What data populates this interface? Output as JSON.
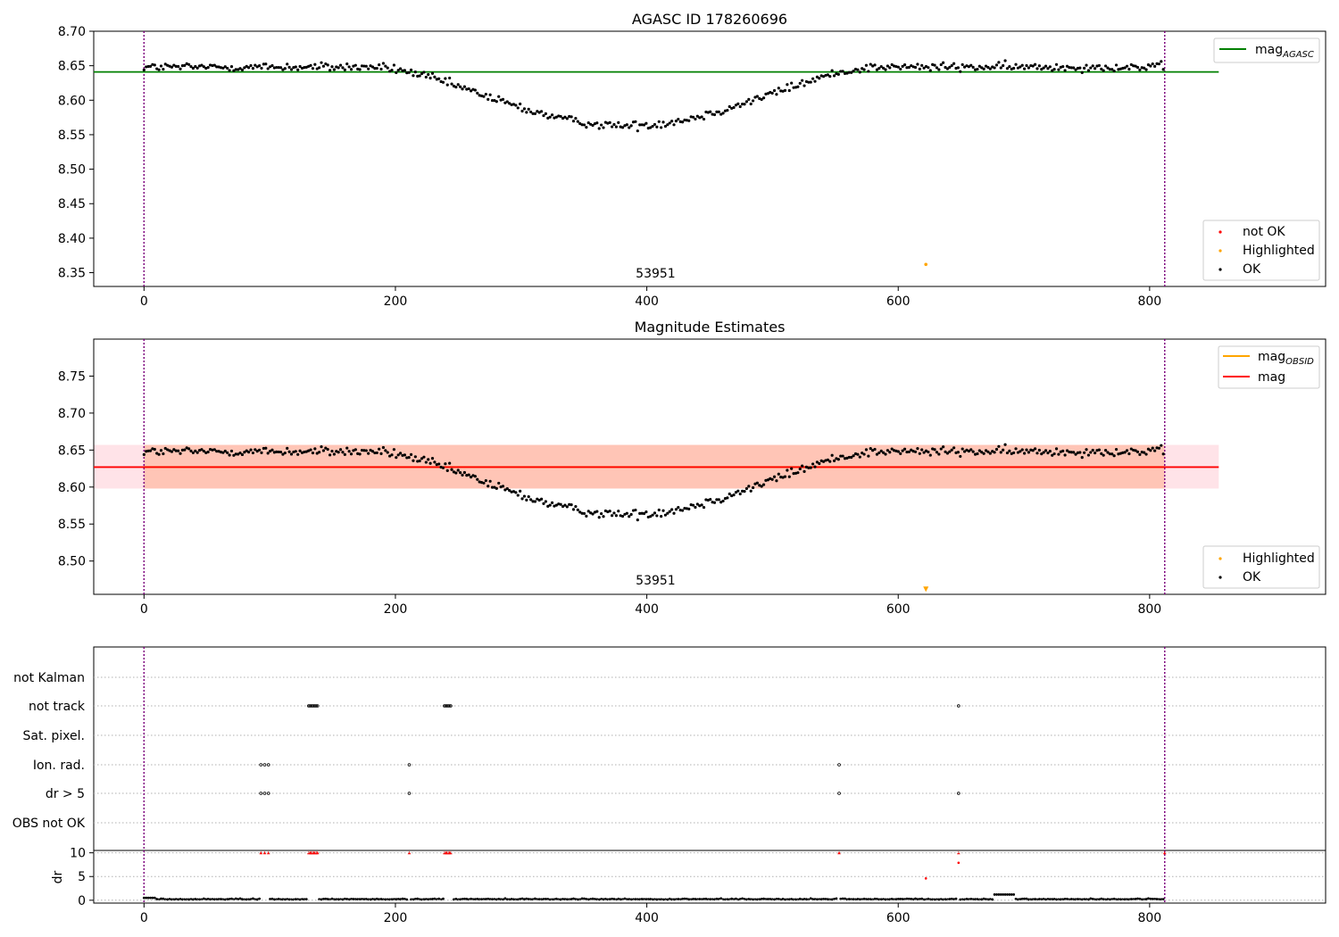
{
  "chart_data": [
    {
      "type": "scatter",
      "title": "AGASC ID 178260696",
      "xlim": [
        -40,
        940
      ],
      "ylim": [
        8.33,
        8.7
      ],
      "xticks": [
        0,
        200,
        400,
        600,
        800
      ],
      "yticks": [
        "8.35",
        "8.40",
        "8.45",
        "8.50",
        "8.55",
        "8.60",
        "8.65",
        "8.70"
      ],
      "grid": false,
      "obs_boundaries": [
        0,
        812
      ],
      "obs_label": {
        "text": "53951",
        "x": 407,
        "y": 8.343
      },
      "reference_line": {
        "name": "mag",
        "name_sub": "AGASC",
        "value": 8.641,
        "x_range": [
          -40,
          855
        ],
        "color": "#008000"
      },
      "highlighted_points": [
        {
          "x": 622,
          "y": 8.362
        }
      ],
      "series_style": {
        "not_ok_color": "#ff0000",
        "highlighted_color": "#ffa500",
        "ok_color": "#000000"
      },
      "curve": {
        "x_max": 812,
        "baseline": 8.648,
        "dip_center": 383,
        "dip_min": 8.563,
        "dip_halfwidth": 200,
        "noise": 0.006
      },
      "legends": {
        "line": {
          "position": "upper right",
          "entries": [
            "mag_AGASC"
          ]
        },
        "markers": {
          "position": "lower right",
          "entries": [
            "not OK",
            "Highlighted",
            "OK"
          ]
        }
      }
    },
    {
      "type": "scatter",
      "title": "Magnitude Estimates",
      "xlim": [
        -40,
        940
      ],
      "ylim": [
        8.455,
        8.8
      ],
      "xticks": [
        0,
        200,
        400,
        600,
        800
      ],
      "yticks": [
        "8.50",
        "8.55",
        "8.60",
        "8.65",
        "8.70",
        "8.75"
      ],
      "grid": false,
      "obs_boundaries": [
        0,
        812
      ],
      "obs_label": {
        "text": "53951",
        "x": 407,
        "y": 8.468
      },
      "mag_line": {
        "name": "mag",
        "value": 8.627,
        "color": "#ff0000",
        "band_low": 8.598,
        "band_high": 8.657,
        "x_range": [
          -40,
          855
        ],
        "band_color": "#ffc0cb"
      },
      "mag_obsid_line": {
        "name": "mag",
        "name_sub": "OBSID",
        "value": 8.627,
        "color": "#ffa500",
        "band_low": 8.598,
        "band_high": 8.657,
        "x_range": [
          0,
          812
        ],
        "band_color": "#ffa07a"
      },
      "highlighted_points": [
        {
          "x": 622,
          "y": 8.462
        }
      ],
      "legends": {
        "line": {
          "position": "upper right",
          "entries": [
            "mag_OBSID",
            "mag"
          ]
        },
        "markers": {
          "position": "lower right",
          "entries": [
            "Highlighted",
            "OK"
          ]
        }
      }
    },
    {
      "type": "scatter",
      "title": "",
      "xlim": [
        -40,
        940
      ],
      "categories": [
        "not Kalman",
        "not track",
        "Sat. pixel.",
        "Ion. rad.",
        "dr > 5",
        "OBS not OK"
      ],
      "flags": {
        "not Kalman": [],
        "not track": [
          131,
          132,
          133,
          134,
          135,
          136,
          137,
          138,
          239,
          240,
          241,
          242,
          243,
          244,
          648
        ],
        "Sat. pixel.": [],
        "Ion. rad.": [
          93,
          96,
          99,
          211,
          553
        ],
        "dr > 5": [
          93,
          96,
          99,
          211,
          553,
          648
        ],
        "OBS not OK": []
      },
      "grid": "horizontal dotted"
    },
    {
      "type": "scatter",
      "title": "",
      "ylabel": "dr",
      "xlim": [
        -40,
        940
      ],
      "ylim": [
        -0.6,
        10.5
      ],
      "xticks": [
        0,
        200,
        400,
        600,
        800
      ],
      "yticks": [
        "0",
        "5",
        "10"
      ],
      "clipped_at_10": [
        93,
        96,
        99,
        131,
        132,
        133,
        134,
        135,
        136,
        137,
        138,
        211,
        239,
        240,
        241,
        242,
        243,
        244,
        553,
        648,
        812
      ],
      "red_points": [
        {
          "x": 622,
          "y": 4.6
        },
        {
          "x": 648,
          "y": 7.9
        }
      ],
      "bump": {
        "x_from": 675,
        "x_to": 692,
        "y": 1.2
      }
    }
  ]
}
